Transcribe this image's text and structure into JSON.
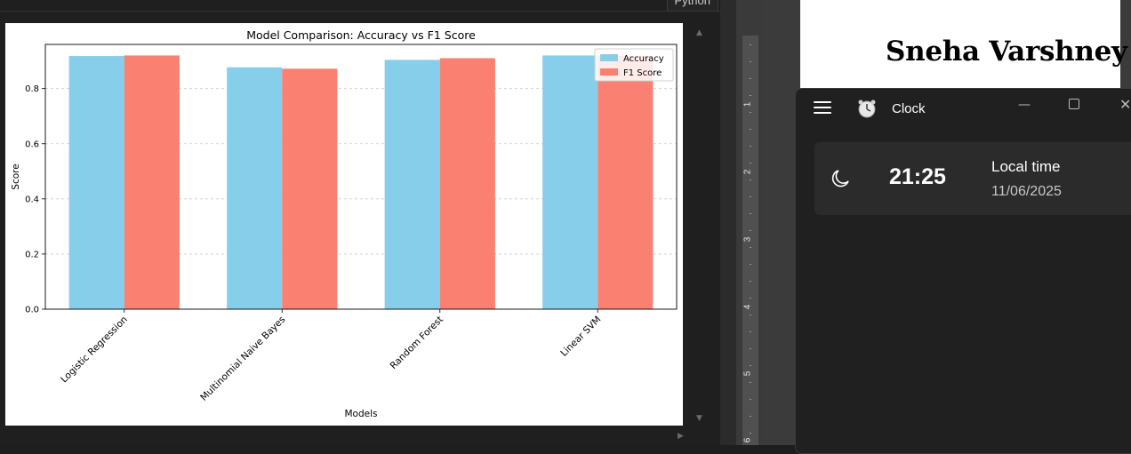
{
  "editor": {
    "language_label": "Python"
  },
  "chart_data": {
    "type": "bar",
    "title": "Model Comparison: Accuracy vs F1 Score",
    "xlabel": "Models",
    "ylabel": "Score",
    "categories": [
      "Logistic Regression",
      "Multinomial Naive Bayes",
      "Random Forest",
      "Linear SVM"
    ],
    "series": [
      {
        "name": "Accuracy",
        "color": "#87ceeb",
        "values": [
          0.918,
          0.877,
          0.904,
          0.92
        ]
      },
      {
        "name": "F1 Score",
        "color": "#fa8072",
        "values": [
          0.92,
          0.872,
          0.91,
          0.918
        ]
      }
    ],
    "ylim": [
      0,
      0.96
    ],
    "yticks": [
      "0.0",
      "0.2",
      "0.4",
      "0.6",
      "0.8"
    ],
    "grid": "y-dashed",
    "legend_position": "top-right"
  },
  "document": {
    "author_name": "Sneha Varshney"
  },
  "ruler": {
    "numbers": [
      "1",
      "2",
      "3",
      "4",
      "5",
      "6"
    ]
  },
  "clock_app": {
    "title": "Clock",
    "time": "21:25",
    "local_label": "Local time",
    "date": "11/06/2025"
  }
}
